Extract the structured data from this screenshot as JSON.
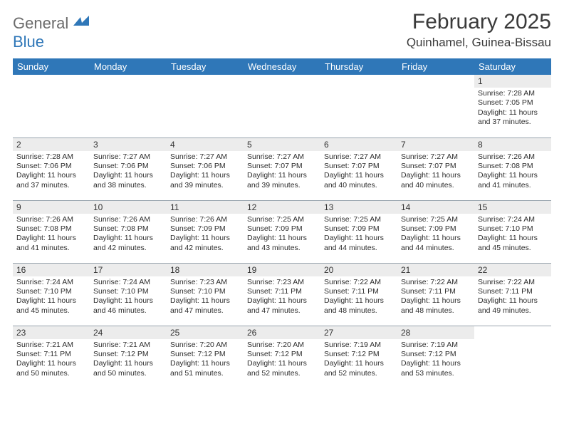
{
  "logo": {
    "word1": "General",
    "word2": "Blue"
  },
  "title": "February 2025",
  "location": "Quinhamel, Guinea-Bissau",
  "header_bg": "#2f77b8",
  "header_fg": "#ffffff",
  "daynum_bg": "#ececec",
  "border_color": "#9aa5af",
  "page_bg": "#ffffff",
  "text_color": "#2e2e2e",
  "weekdays": [
    "Sunday",
    "Monday",
    "Tuesday",
    "Wednesday",
    "Thursday",
    "Friday",
    "Saturday"
  ],
  "weeks": [
    [
      {
        "n": "",
        "sr": "",
        "ss": "",
        "dl": ""
      },
      {
        "n": "",
        "sr": "",
        "ss": "",
        "dl": ""
      },
      {
        "n": "",
        "sr": "",
        "ss": "",
        "dl": ""
      },
      {
        "n": "",
        "sr": "",
        "ss": "",
        "dl": ""
      },
      {
        "n": "",
        "sr": "",
        "ss": "",
        "dl": ""
      },
      {
        "n": "",
        "sr": "",
        "ss": "",
        "dl": ""
      },
      {
        "n": "1",
        "sr": "Sunrise: 7:28 AM",
        "ss": "Sunset: 7:05 PM",
        "dl": "Daylight: 11 hours and 37 minutes."
      }
    ],
    [
      {
        "n": "2",
        "sr": "Sunrise: 7:28 AM",
        "ss": "Sunset: 7:06 PM",
        "dl": "Daylight: 11 hours and 37 minutes."
      },
      {
        "n": "3",
        "sr": "Sunrise: 7:27 AM",
        "ss": "Sunset: 7:06 PM",
        "dl": "Daylight: 11 hours and 38 minutes."
      },
      {
        "n": "4",
        "sr": "Sunrise: 7:27 AM",
        "ss": "Sunset: 7:06 PM",
        "dl": "Daylight: 11 hours and 39 minutes."
      },
      {
        "n": "5",
        "sr": "Sunrise: 7:27 AM",
        "ss": "Sunset: 7:07 PM",
        "dl": "Daylight: 11 hours and 39 minutes."
      },
      {
        "n": "6",
        "sr": "Sunrise: 7:27 AM",
        "ss": "Sunset: 7:07 PM",
        "dl": "Daylight: 11 hours and 40 minutes."
      },
      {
        "n": "7",
        "sr": "Sunrise: 7:27 AM",
        "ss": "Sunset: 7:07 PM",
        "dl": "Daylight: 11 hours and 40 minutes."
      },
      {
        "n": "8",
        "sr": "Sunrise: 7:26 AM",
        "ss": "Sunset: 7:08 PM",
        "dl": "Daylight: 11 hours and 41 minutes."
      }
    ],
    [
      {
        "n": "9",
        "sr": "Sunrise: 7:26 AM",
        "ss": "Sunset: 7:08 PM",
        "dl": "Daylight: 11 hours and 41 minutes."
      },
      {
        "n": "10",
        "sr": "Sunrise: 7:26 AM",
        "ss": "Sunset: 7:08 PM",
        "dl": "Daylight: 11 hours and 42 minutes."
      },
      {
        "n": "11",
        "sr": "Sunrise: 7:26 AM",
        "ss": "Sunset: 7:09 PM",
        "dl": "Daylight: 11 hours and 42 minutes."
      },
      {
        "n": "12",
        "sr": "Sunrise: 7:25 AM",
        "ss": "Sunset: 7:09 PM",
        "dl": "Daylight: 11 hours and 43 minutes."
      },
      {
        "n": "13",
        "sr": "Sunrise: 7:25 AM",
        "ss": "Sunset: 7:09 PM",
        "dl": "Daylight: 11 hours and 44 minutes."
      },
      {
        "n": "14",
        "sr": "Sunrise: 7:25 AM",
        "ss": "Sunset: 7:09 PM",
        "dl": "Daylight: 11 hours and 44 minutes."
      },
      {
        "n": "15",
        "sr": "Sunrise: 7:24 AM",
        "ss": "Sunset: 7:10 PM",
        "dl": "Daylight: 11 hours and 45 minutes."
      }
    ],
    [
      {
        "n": "16",
        "sr": "Sunrise: 7:24 AM",
        "ss": "Sunset: 7:10 PM",
        "dl": "Daylight: 11 hours and 45 minutes."
      },
      {
        "n": "17",
        "sr": "Sunrise: 7:24 AM",
        "ss": "Sunset: 7:10 PM",
        "dl": "Daylight: 11 hours and 46 minutes."
      },
      {
        "n": "18",
        "sr": "Sunrise: 7:23 AM",
        "ss": "Sunset: 7:10 PM",
        "dl": "Daylight: 11 hours and 47 minutes."
      },
      {
        "n": "19",
        "sr": "Sunrise: 7:23 AM",
        "ss": "Sunset: 7:11 PM",
        "dl": "Daylight: 11 hours and 47 minutes."
      },
      {
        "n": "20",
        "sr": "Sunrise: 7:22 AM",
        "ss": "Sunset: 7:11 PM",
        "dl": "Daylight: 11 hours and 48 minutes."
      },
      {
        "n": "21",
        "sr": "Sunrise: 7:22 AM",
        "ss": "Sunset: 7:11 PM",
        "dl": "Daylight: 11 hours and 48 minutes."
      },
      {
        "n": "22",
        "sr": "Sunrise: 7:22 AM",
        "ss": "Sunset: 7:11 PM",
        "dl": "Daylight: 11 hours and 49 minutes."
      }
    ],
    [
      {
        "n": "23",
        "sr": "Sunrise: 7:21 AM",
        "ss": "Sunset: 7:11 PM",
        "dl": "Daylight: 11 hours and 50 minutes."
      },
      {
        "n": "24",
        "sr": "Sunrise: 7:21 AM",
        "ss": "Sunset: 7:12 PM",
        "dl": "Daylight: 11 hours and 50 minutes."
      },
      {
        "n": "25",
        "sr": "Sunrise: 7:20 AM",
        "ss": "Sunset: 7:12 PM",
        "dl": "Daylight: 11 hours and 51 minutes."
      },
      {
        "n": "26",
        "sr": "Sunrise: 7:20 AM",
        "ss": "Sunset: 7:12 PM",
        "dl": "Daylight: 11 hours and 52 minutes."
      },
      {
        "n": "27",
        "sr": "Sunrise: 7:19 AM",
        "ss": "Sunset: 7:12 PM",
        "dl": "Daylight: 11 hours and 52 minutes."
      },
      {
        "n": "28",
        "sr": "Sunrise: 7:19 AM",
        "ss": "Sunset: 7:12 PM",
        "dl": "Daylight: 11 hours and 53 minutes."
      },
      {
        "n": "",
        "sr": "",
        "ss": "",
        "dl": ""
      }
    ]
  ]
}
